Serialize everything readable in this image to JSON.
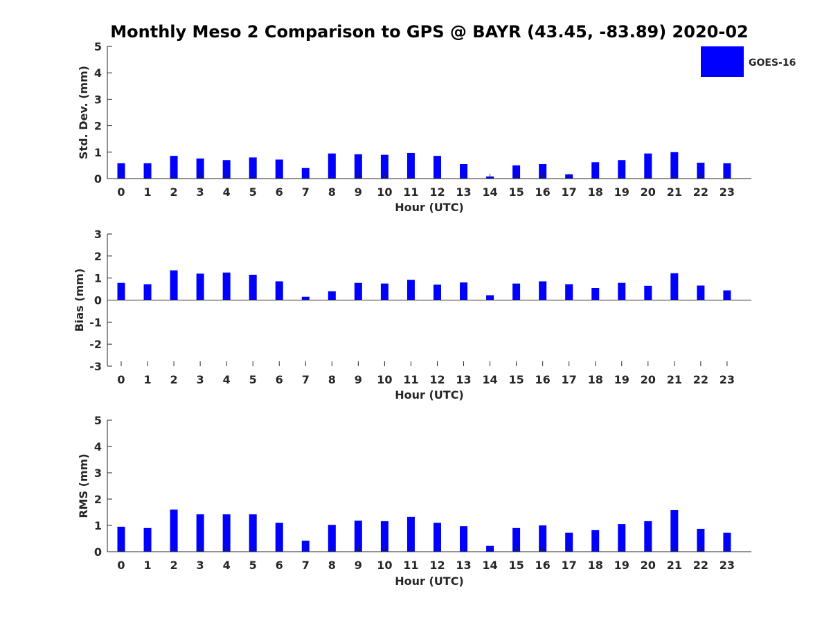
{
  "title": "Monthly Meso 2 Comparison to GPS @ BAYR (43.45, -83.89) 2020-02",
  "legend": {
    "label": "GOES-16",
    "color": "#0000ff"
  },
  "chart_data": [
    {
      "type": "bar",
      "ylabel": "Std. Dev. (mm)",
      "xlabel": "Hour (UTC)",
      "ylim": [
        0,
        5
      ],
      "yticks": [
        0,
        1,
        2,
        3,
        4,
        5
      ],
      "categories": [
        "0",
        "1",
        "2",
        "3",
        "4",
        "5",
        "6",
        "7",
        "8",
        "9",
        "10",
        "11",
        "12",
        "13",
        "14",
        "15",
        "16",
        "17",
        "18",
        "19",
        "20",
        "21",
        "22",
        "23"
      ],
      "series": [
        {
          "name": "GOES-16",
          "values": [
            0.58,
            0.58,
            0.86,
            0.76,
            0.7,
            0.8,
            0.72,
            0.4,
            0.95,
            0.92,
            0.9,
            0.97,
            0.86,
            0.55,
            0.08,
            0.5,
            0.55,
            0.16,
            0.62,
            0.7,
            0.95,
            1.0,
            0.6,
            0.58
          ]
        }
      ]
    },
    {
      "type": "bar",
      "ylabel": "Bias (mm)",
      "xlabel": "Hour (UTC)",
      "ylim": [
        -3,
        3
      ],
      "yticks": [
        -3,
        -2,
        -1,
        0,
        1,
        2,
        3
      ],
      "categories": [
        "0",
        "1",
        "2",
        "3",
        "4",
        "5",
        "6",
        "7",
        "8",
        "9",
        "10",
        "11",
        "12",
        "13",
        "14",
        "15",
        "16",
        "17",
        "18",
        "19",
        "20",
        "21",
        "22",
        "23"
      ],
      "series": [
        {
          "name": "GOES-16",
          "values": [
            0.78,
            0.72,
            1.35,
            1.2,
            1.25,
            1.15,
            0.85,
            0.15,
            0.4,
            0.78,
            0.75,
            0.92,
            0.7,
            0.8,
            0.22,
            0.75,
            0.85,
            0.72,
            0.55,
            0.78,
            0.65,
            1.22,
            0.66,
            0.44
          ]
        }
      ]
    },
    {
      "type": "bar",
      "ylabel": "RMS (mm)",
      "xlabel": "Hour (UTC)",
      "ylim": [
        0,
        5
      ],
      "yticks": [
        0,
        1,
        2,
        3,
        4,
        5
      ],
      "categories": [
        "0",
        "1",
        "2",
        "3",
        "4",
        "5",
        "6",
        "7",
        "8",
        "9",
        "10",
        "11",
        "12",
        "13",
        "14",
        "15",
        "16",
        "17",
        "18",
        "19",
        "20",
        "21",
        "22",
        "23"
      ],
      "series": [
        {
          "name": "GOES-16",
          "values": [
            0.95,
            0.9,
            1.6,
            1.42,
            1.42,
            1.42,
            1.1,
            0.42,
            1.02,
            1.18,
            1.16,
            1.32,
            1.1,
            0.97,
            0.22,
            0.9,
            1.0,
            0.72,
            0.82,
            1.05,
            1.16,
            1.58,
            0.87,
            0.72
          ]
        }
      ]
    }
  ]
}
